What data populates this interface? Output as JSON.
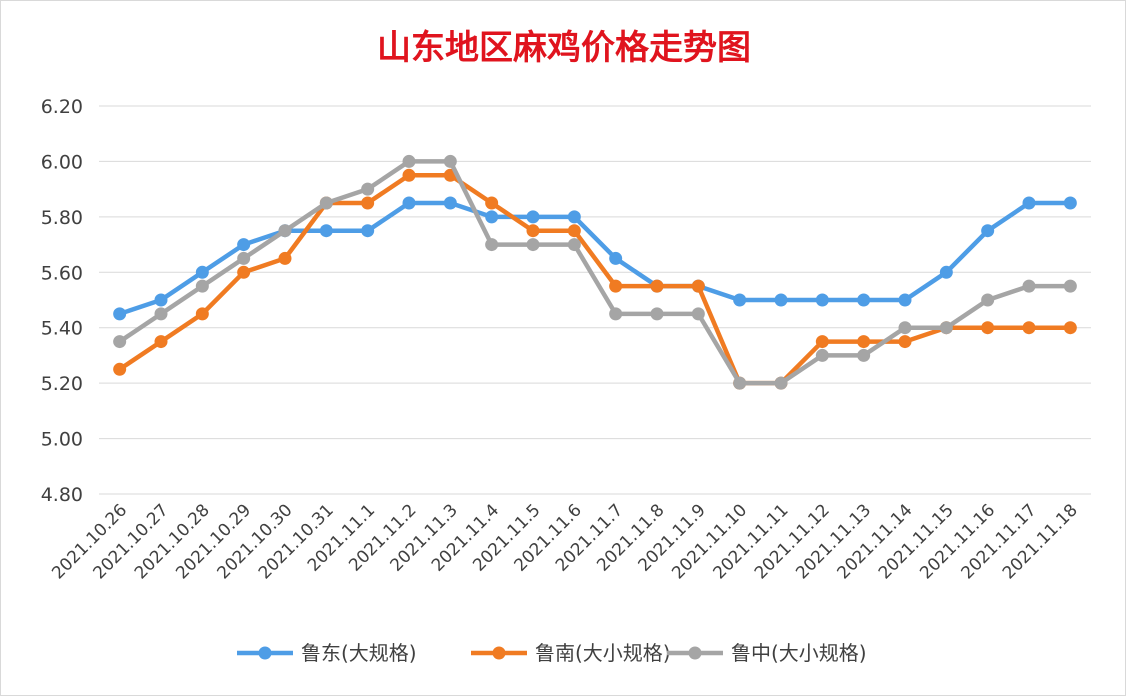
{
  "chart_data": {
    "type": "line",
    "title": "山东地区麻鸡价格走势图",
    "xlabel": "",
    "ylabel": "",
    "ylim": [
      4.8,
      6.2
    ],
    "yticks": [
      "6.20",
      "6.00",
      "5.80",
      "5.60",
      "5.40",
      "5.20",
      "5.00",
      "4.80"
    ],
    "grid": true,
    "legend_position": "bottom",
    "categories": [
      "2021.10.26",
      "2021.10.27",
      "2021.10.28",
      "2021.10.29",
      "2021.10.30",
      "2021.10.31",
      "2021.11.1",
      "2021.11.2",
      "2021.11.3",
      "2021.11.4",
      "2021.11.5",
      "2021.11.6",
      "2021.11.7",
      "2021.11.8",
      "2021.11.9",
      "2021.11.10",
      "2021.11.11",
      "2021.11.12",
      "2021.11.13",
      "2021.11.14",
      "2021.11.15",
      "2021.11.16",
      "2021.11.17",
      "2021.11.18"
    ],
    "series": [
      {
        "name": "鲁东(大规格)",
        "color": "#4e9de6",
        "values": [
          5.45,
          5.5,
          5.6,
          5.7,
          5.75,
          5.75,
          5.75,
          5.85,
          5.85,
          5.8,
          5.8,
          5.8,
          5.65,
          5.55,
          5.55,
          5.5,
          5.5,
          5.5,
          5.5,
          5.5,
          5.6,
          5.75,
          5.85,
          5.85
        ]
      },
      {
        "name": "鲁南(大小规格)",
        "color": "#f07b22",
        "values": [
          5.25,
          5.35,
          5.45,
          5.6,
          5.65,
          5.85,
          5.85,
          5.95,
          5.95,
          5.85,
          5.75,
          5.75,
          5.55,
          5.55,
          5.55,
          5.2,
          5.2,
          5.35,
          5.35,
          5.35,
          5.4,
          5.4,
          5.4,
          5.4
        ]
      },
      {
        "name": "鲁中(大小规格)",
        "color": "#a5a5a5",
        "values": [
          5.35,
          5.45,
          5.55,
          5.65,
          5.75,
          5.85,
          5.9,
          6.0,
          6.0,
          5.7,
          5.7,
          5.7,
          5.45,
          5.45,
          5.45,
          5.2,
          5.2,
          5.3,
          5.3,
          5.4,
          5.4,
          5.5,
          5.55,
          5.55
        ]
      }
    ]
  }
}
